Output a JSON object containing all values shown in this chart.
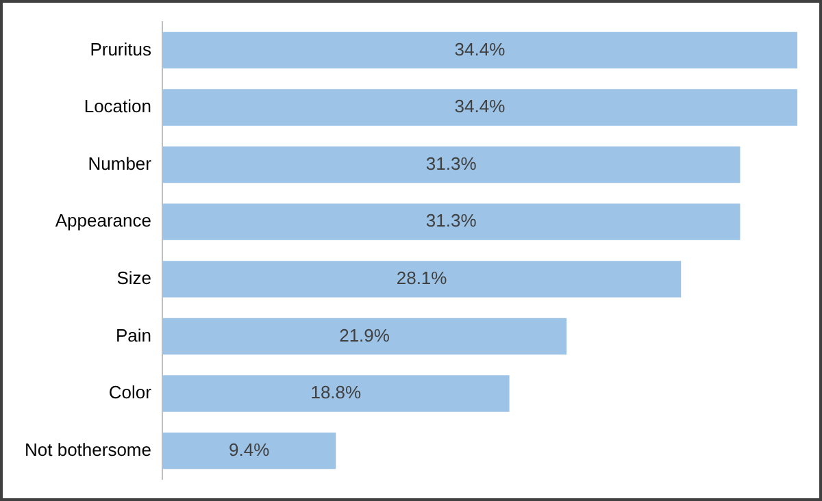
{
  "chart_data": {
    "type": "bar",
    "orientation": "horizontal",
    "categories": [
      "Pruritus",
      "Location",
      "Number",
      "Appearance",
      "Size",
      "Pain",
      "Color",
      "Not bothersome"
    ],
    "values": [
      34.4,
      34.4,
      31.3,
      31.3,
      28.1,
      21.9,
      18.8,
      9.4
    ],
    "value_labels": [
      "34.4%",
      "34.4%",
      "31.3%",
      "31.3%",
      "28.1%",
      "21.9%",
      "18.8%",
      "9.4%"
    ],
    "color": "#9dc3e6",
    "legend": false
  }
}
